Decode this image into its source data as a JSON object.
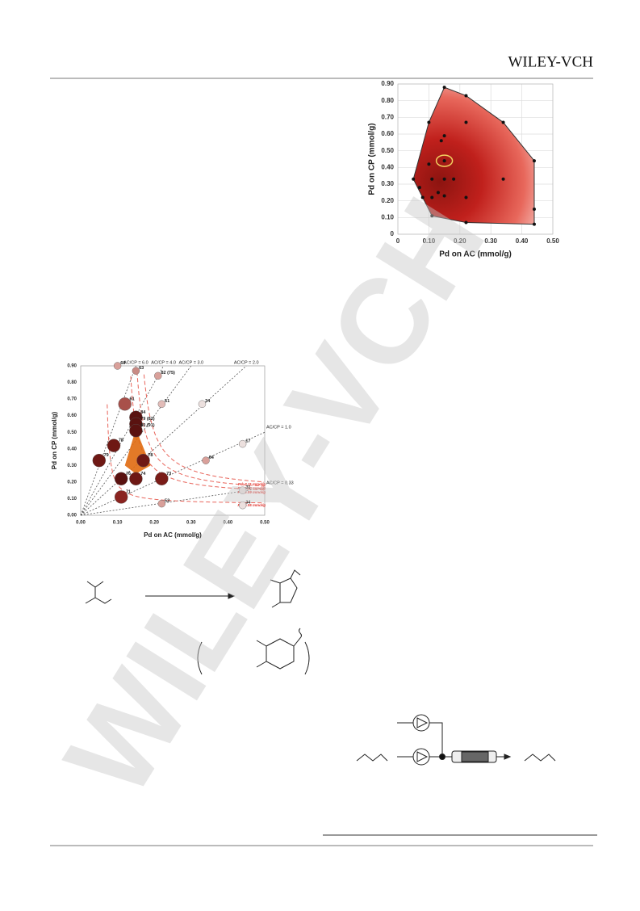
{
  "header": {
    "publisher": "WILEY-VCH"
  },
  "watermark": "WILEY-VCH",
  "figure_contour": {
    "type": "scatter",
    "xlabel": "Pd on AC (mmol/g)",
    "ylabel": "Pd on CP (mmol/g)",
    "x": [
      0.15,
      0.22,
      0.1,
      0.22,
      0.34,
      0.15,
      0.14,
      0.15,
      0.1,
      0.05,
      0.11,
      0.18,
      0.15,
      0.34,
      0.07,
      0.08,
      0.11,
      0.13,
      0.15,
      0.22,
      0.11,
      0.22,
      0.44,
      0.44,
      0.44
    ],
    "y": [
      0.88,
      0.83,
      0.67,
      0.67,
      0.67,
      0.59,
      0.56,
      0.44,
      0.42,
      0.33,
      0.33,
      0.33,
      0.33,
      0.33,
      0.28,
      0.22,
      0.22,
      0.25,
      0.23,
      0.22,
      0.11,
      0.07,
      0.44,
      0.15,
      0.06
    ],
    "xlim": [
      0,
      0.5
    ],
    "ylim": [
      0,
      0.9
    ],
    "xticks": [
      0,
      {
        "value": 0.1,
        "label": "0.10"
      },
      {
        "value": 0.2,
        "label": "0.20"
      },
      {
        "value": 0.3,
        "label": "0.30"
      },
      {
        "value": 0.4,
        "label": "0.40"
      },
      {
        "value": 0.5,
        "label": "0.50"
      }
    ],
    "yticks": [
      0,
      {
        "value": 0.1,
        "label": "0.10"
      },
      {
        "value": 0.2,
        "label": "0.20"
      },
      {
        "value": 0.3,
        "label": "0.30"
      },
      {
        "value": 0.4,
        "label": "0.40"
      },
      {
        "value": 0.5,
        "label": "0.50"
      },
      {
        "value": 0.6,
        "label": "0.60"
      },
      {
        "value": 0.7,
        "label": "0.70"
      },
      {
        "value": 0.8,
        "label": "0.80"
      },
      {
        "value": 0.9,
        "label": "0.90"
      }
    ],
    "grid": true,
    "color": "#c0201c"
  },
  "figure_bubble": {
    "type": "bubble",
    "xlabel": "Pd on AC (mmol/g)",
    "ylabel": "Pd on CP (mmol/g)",
    "xlim": [
      0,
      0.5
    ],
    "ylim": [
      0,
      0.9
    ],
    "xticks": [
      {
        "value": 0,
        "label": "0.00"
      },
      {
        "value": 0.1,
        "label": "0.10"
      },
      {
        "value": 0.2,
        "label": "0.20"
      },
      {
        "value": 0.3,
        "label": "0.30"
      },
      {
        "value": 0.4,
        "label": "0.40"
      },
      {
        "value": 0.5,
        "label": "0.50"
      }
    ],
    "yticks": [
      {
        "value": 0,
        "label": "0.00"
      },
      {
        "value": 0.1,
        "label": "0.10"
      },
      {
        "value": 0.2,
        "label": "0.20"
      },
      {
        "value": 0.3,
        "label": "0.30"
      },
      {
        "value": 0.4,
        "label": "0.40"
      },
      {
        "value": 0.5,
        "label": "0.50"
      },
      {
        "value": 0.6,
        "label": "0.60"
      },
      {
        "value": 0.7,
        "label": "0.70"
      },
      {
        "value": 0.8,
        "label": "0.80"
      },
      {
        "value": 0.9,
        "label": "0.90"
      }
    ],
    "ratio_lines": [
      {
        "value": 6,
        "label": "AC/CP = 6.0"
      },
      {
        "value": 4,
        "label": "AC/CP = 4.0"
      },
      {
        "value": 3,
        "label": "AC/CP = 3.0"
      },
      {
        "value": 2,
        "label": "AC/CP = 2.0"
      },
      {
        "value": 1,
        "label": "AC/CP = 1.0"
      },
      {
        "value": 0.33,
        "label": "AC/CP = 0.33"
      }
    ],
    "pd_curves": [
      {
        "value": 0.11,
        "label": "Pd: 0.11 mmol/g"
      },
      {
        "value": 0.1,
        "label": "Pd: 0.10 mmol/g"
      },
      {
        "value": 0.09,
        "label": "Pd: 0.09 mmol/g"
      },
      {
        "value": 0.05,
        "label": "Pd: 0.05 mmol/g"
      }
    ],
    "bubbles": {
      "x": [
        0.1,
        0.15,
        0.21,
        0.12,
        0.22,
        0.33,
        0.15,
        0.15,
        0.15,
        0.44,
        0.09,
        0.34,
        0.05,
        0.17,
        0.22,
        0.11,
        0.15,
        0.11,
        0.44,
        0.22,
        0.44
      ],
      "y": [
        0.9,
        0.87,
        0.84,
        0.67,
        0.67,
        0.67,
        0.59,
        0.55,
        0.51,
        0.43,
        0.42,
        0.33,
        0.33,
        0.33,
        0.22,
        0.22,
        0.22,
        0.11,
        0.15,
        0.07,
        0.06
      ],
      "labels": [
        "60",
        "63",
        "82 (75)",
        "61",
        "51",
        "34",
        "84",
        "79 (82)",
        "80 (91)",
        "17",
        "78",
        "64",
        "79",
        "78",
        "73",
        "76",
        "74",
        "71",
        "31",
        "53",
        "34"
      ],
      "colors": [
        "#d9a09a",
        "#c98a84",
        "#d9a09a",
        "#a8504a",
        "#e2bcb8",
        "#ece0de",
        "#5a1210",
        "#5a1210",
        "#5a1210",
        "#ece0de",
        "#6e1814",
        "#d9a09a",
        "#6e1814",
        "#6e1814",
        "#7a1c18",
        "#5a1210",
        "#6e1814",
        "#8a2420",
        "#ece0de",
        "#d9a09a",
        "#ece0de"
      ]
    }
  }
}
